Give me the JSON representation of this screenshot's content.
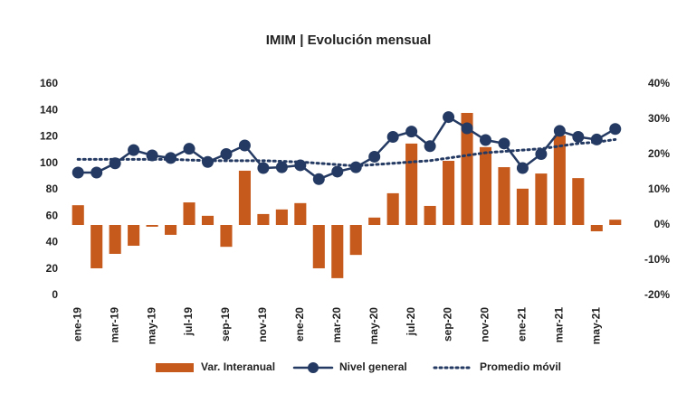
{
  "chart_data": {
    "type": "bar_line",
    "title": "IMIM | Evolución mensual",
    "categories": [
      "ene-19",
      null,
      "mar-19",
      null,
      "may-19",
      null,
      "jul-19",
      null,
      "sep-19",
      null,
      "nov-19",
      null,
      "ene-20",
      null,
      "mar-20",
      null,
      "may-20",
      null,
      "jul-20",
      null,
      "sep-20",
      null,
      "nov-20",
      null,
      "ene-21",
      null,
      "mar-21",
      null,
      "may-21",
      null
    ],
    "series": [
      {
        "name": "Var. Interanual",
        "type": "bar",
        "axis": "y2",
        "color": "#c55a1c",
        "values": [
          5.6,
          -12.3,
          -8.2,
          -5.9,
          -0.5,
          -2.8,
          6.4,
          2.6,
          -6.2,
          15.4,
          3.1,
          4.4,
          6.2,
          -12.3,
          -15.1,
          -8.5,
          2.1,
          9.0,
          23.1,
          5.4,
          18.2,
          31.8,
          22.1,
          16.4,
          10.3,
          14.6,
          25.4,
          13.3,
          -1.8,
          1.5
        ]
      },
      {
        "name": "Nivel general",
        "type": "line",
        "axis": "y",
        "color": "#243a62",
        "marker": true,
        "values": [
          93,
          93,
          100,
          110,
          106,
          104,
          111,
          101,
          107,
          113.5,
          96.4,
          97,
          98.5,
          88,
          93.7,
          97,
          105,
          120,
          124,
          113,
          135,
          126.5,
          117.6,
          115,
          96.4,
          107,
          124.5,
          120,
          118,
          126
        ]
      },
      {
        "name": "Promedio móvil",
        "type": "line",
        "axis": "y",
        "color": "#243a62",
        "dotted": true,
        "values": [
          103,
          103,
          103,
          103,
          103,
          103,
          102.5,
          102,
          102,
          102,
          102,
          101.5,
          101,
          100,
          99,
          98,
          99,
          100,
          101,
          102,
          104,
          106,
          108,
          109,
          110,
          111,
          113,
          115,
          116,
          118
        ]
      }
    ],
    "ylim": [
      0,
      160
    ],
    "yticks": [
      0,
      20,
      40,
      60,
      80,
      100,
      120,
      140,
      160
    ],
    "y2lim": [
      -20,
      40
    ],
    "y2ticks": [
      {
        "value": -20,
        "label": "-20%"
      },
      {
        "value": -10,
        "label": "-10%"
      },
      {
        "value": 0,
        "label": "0%"
      },
      {
        "value": 10,
        "label": "10%"
      },
      {
        "value": 20,
        "label": "20%"
      },
      {
        "value": 30,
        "label": "30%"
      },
      {
        "value": 40,
        "label": "40%"
      }
    ],
    "grid": false,
    "legend": "bottom"
  }
}
